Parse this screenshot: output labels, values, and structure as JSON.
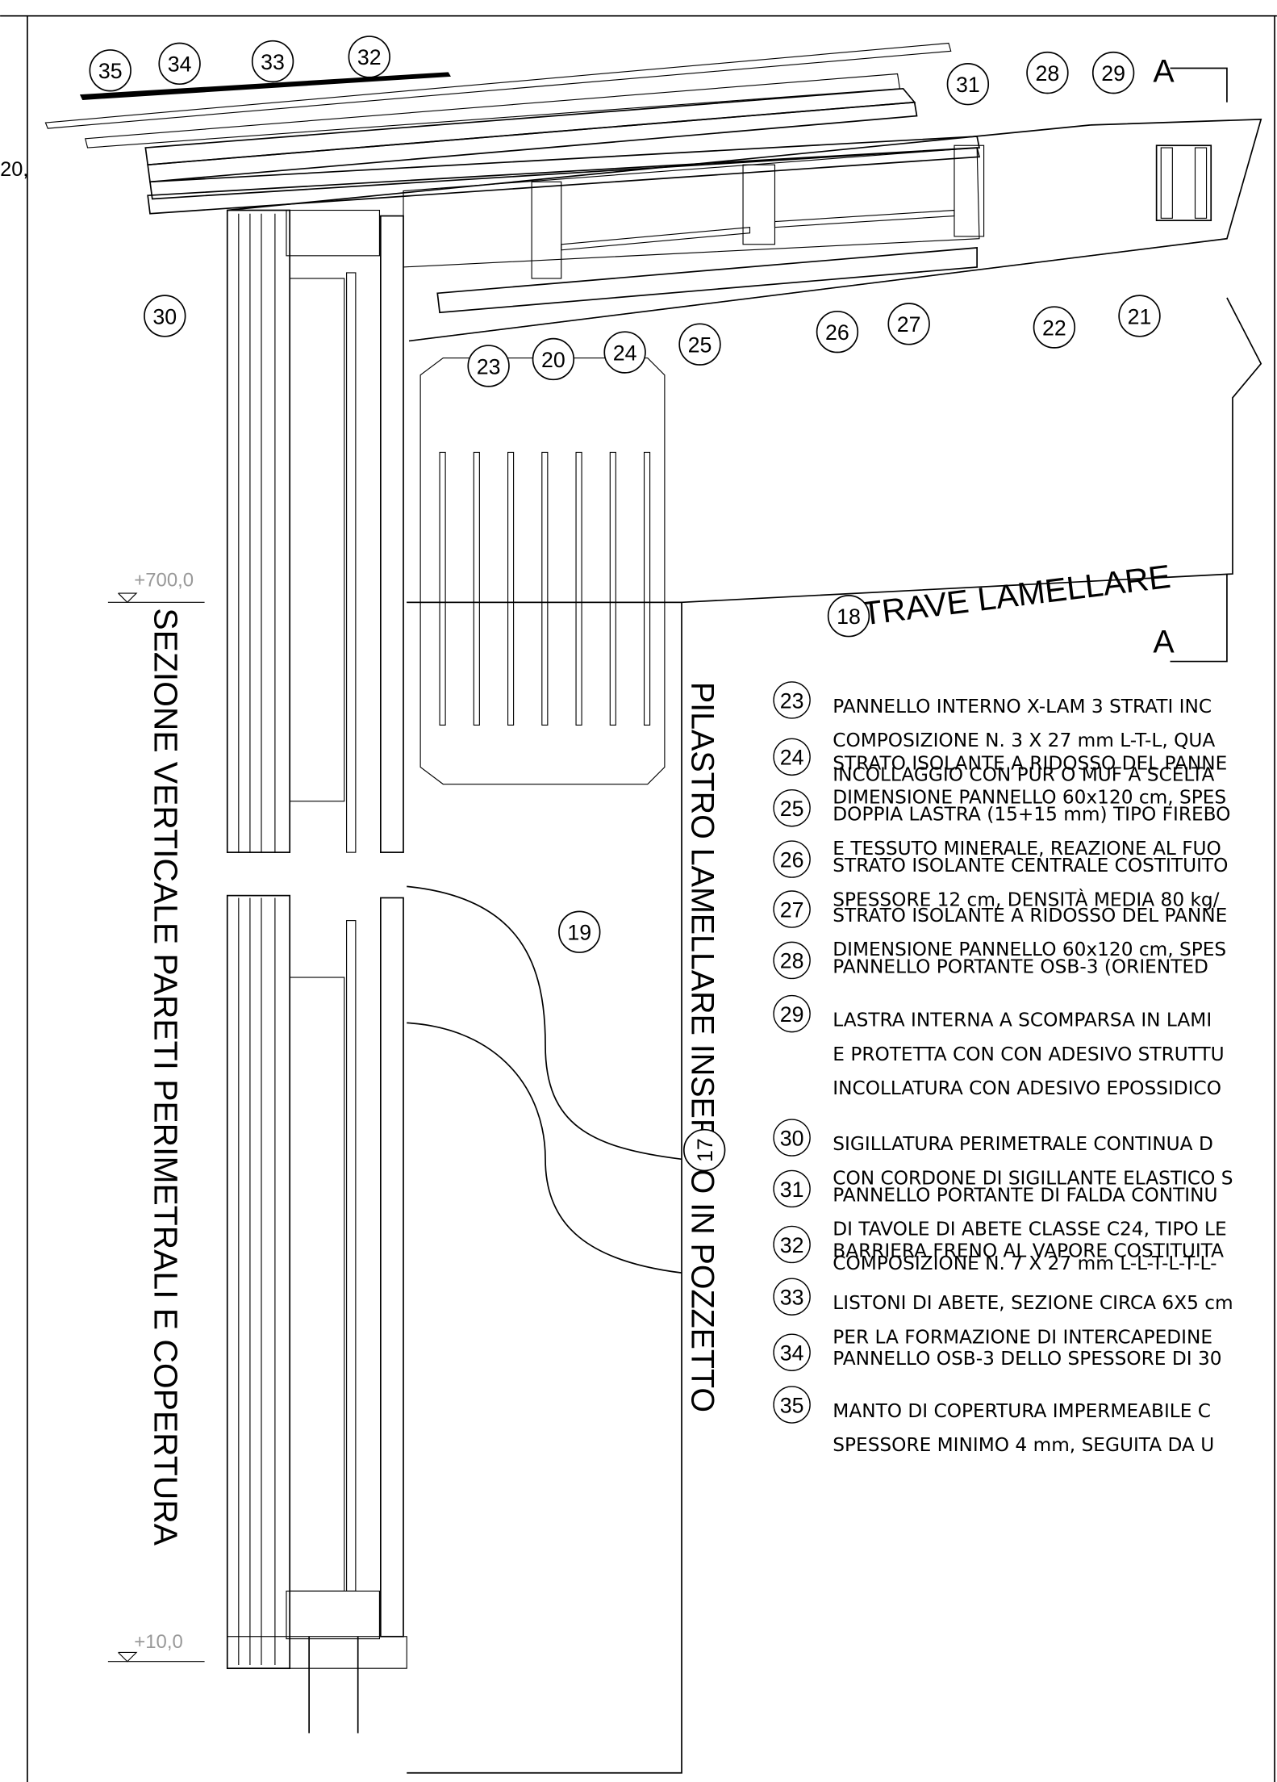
{
  "left_fragment": "20,",
  "section_marks": [
    "A",
    "A"
  ],
  "levels": [
    "+700,0",
    "+10,0"
  ],
  "vertical_titles": [
    "SEZIONE VERTICALE PARETI PERIMETRALI E COPERTURA",
    "PILASTRO LAMELLARE INSERITO IN POZZETTO"
  ],
  "beam_label": "TRAVE LAMELLARE",
  "callouts": [
    "35",
    "34",
    "33",
    "32",
    "31",
    "28",
    "29",
    "30",
    "23",
    "20",
    "24",
    "25",
    "26",
    "27",
    "22",
    "21",
    "19",
    "18",
    "17"
  ],
  "legend": [
    {
      "number": "23",
      "lines": [
        "PANNELLO INTERNO X-LAM 3 STRATI INC",
        "COMPOSIZIONE N. 3 X 27 mm L-T-L, QUA",
        "INCOLLAGGIO CON PUR O MUF A SCELTA"
      ]
    },
    {
      "number": "24",
      "lines": [
        "STRATO ISOLANTE A RIDOSSO DEL PANNE",
        "DIMENSIONE PANNELLO 60x120 cm, SPES"
      ]
    },
    {
      "number": "25",
      "lines": [
        "DOPPIA LASTRA (15+15 mm) TIPO FIREBO",
        "E TESSUTO MINERALE, REAZIONE AL FUO"
      ]
    },
    {
      "number": "26",
      "lines": [
        "STRATO ISOLANTE CENTRALE COSTITUITO",
        "SPESSORE 12 cm, DENSITÀ MEDIA 80 kg/"
      ]
    },
    {
      "number": "27",
      "lines": [
        "STRATO ISOLANTE A RIDOSSO DEL PANNE",
        "DIMENSIONE PANNELLO 60x120 cm, SPES"
      ]
    },
    {
      "number": "28",
      "lines": [
        "PANNELLO PORTANTE OSB-3 (ORIENTED"
      ]
    },
    {
      "number": "29",
      "lines": [
        "LASTRA INTERNA A SCOMPARSA IN LAMI",
        "E PROTETTA CON CON ADESIVO STRUTTU",
        "INCOLLATURA CON  ADESIVO EPOSSIDICO"
      ]
    },
    {
      "number": "30",
      "lines": [
        "SIGILLATURA PERIMETRALE CONTINUA D",
        "CON CORDONE DI SIGILLANTE ELASTICO S"
      ]
    },
    {
      "number": "31",
      "lines": [
        "PANNELLO PORTANTE DI FALDA CONTINU",
        "DI TAVOLE DI ABETE CLASSE C24, TIPO LE",
        "COMPOSIZIONE N. 7 X 27 mm L-L-T-L-T-L-"
      ]
    },
    {
      "number": "32",
      "lines": [
        "BARRIERA FRENO AL VAPORE COSTITUITA"
      ]
    },
    {
      "number": "33",
      "lines": [
        "LISTONI DI ABETE, SEZIONE CIRCA 6X5 cm",
        "PER LA FORMAZIONE DI INTERCAPEDINE"
      ]
    },
    {
      "number": "34",
      "lines": [
        "PANNELLO OSB-3 DELLO SPESSORE DI 30"
      ]
    },
    {
      "number": "35",
      "lines": [
        "MANTO DI COPERTURA IMPERMEABILE C",
        "SPESSORE MINIMO 4 mm, SEGUITA DA U"
      ]
    }
  ]
}
